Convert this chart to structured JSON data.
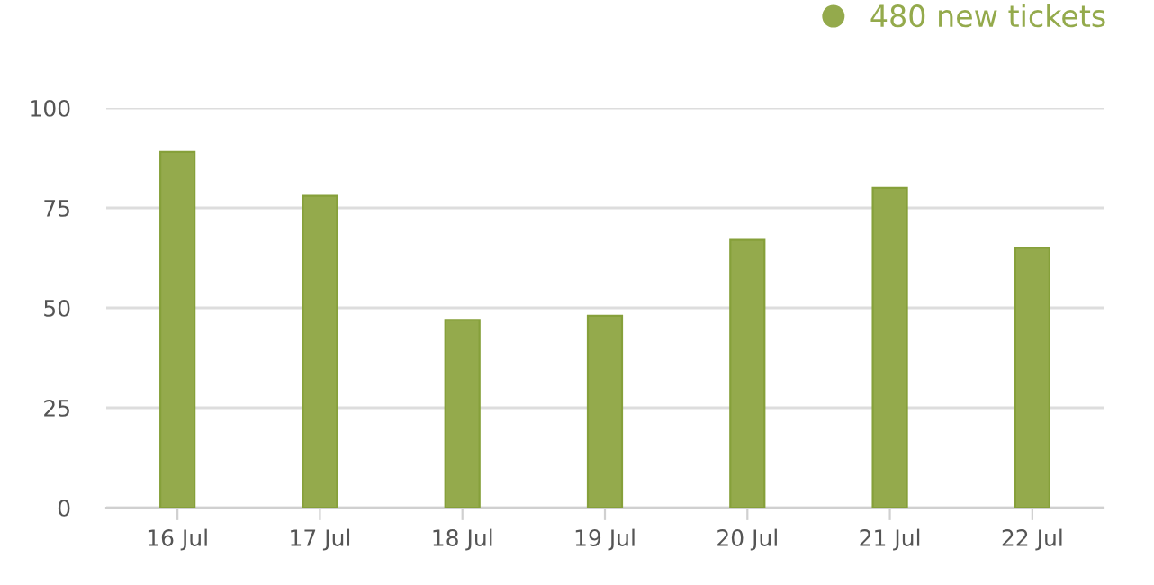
{
  "chart_data": {
    "type": "bar",
    "categories": [
      "16 Jul",
      "17 Jul",
      "18 Jul",
      "19 Jul",
      "20 Jul",
      "21 Jul",
      "22 Jul"
    ],
    "series": [
      {
        "name": "480 new tickets",
        "color": "#94aa4c",
        "values": [
          89,
          78,
          47,
          48,
          67,
          80,
          65
        ]
      }
    ],
    "ylim": [
      0,
      100
    ],
    "yticks": [
      0,
      25,
      50,
      75,
      100
    ],
    "grid": "y",
    "legend": "top right"
  }
}
